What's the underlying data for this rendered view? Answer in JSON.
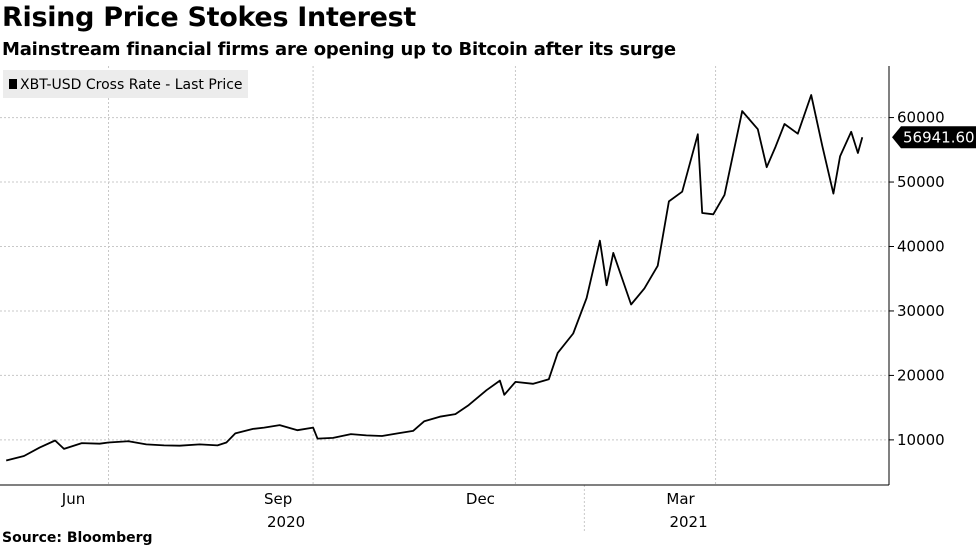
{
  "header": {
    "title": "Rising Price Stokes Interest",
    "subtitle": "Mainstream financial firms are opening up to Bitcoin after its surge"
  },
  "footer": {
    "source": "Source: Bloomberg"
  },
  "colors": {
    "line": "#000000",
    "grid": "#c8c8c8",
    "legend_bg": "#ececec",
    "last_label_bg": "#000000"
  },
  "chart_data": {
    "type": "line",
    "title": "Rising Price Stokes Interest",
    "subtitle": "Mainstream financial firms are opening up to Bitcoin after its surge",
    "legend": {
      "position": "top-left",
      "entries": [
        "XBT-USD Cross Rate - Last Price"
      ]
    },
    "series": [
      {
        "name": "XBT-USD Cross Rate - Last Price",
        "x": [
          "2020-04-16",
          "2020-04-24",
          "2020-05-01",
          "2020-05-08",
          "2020-05-12",
          "2020-05-20",
          "2020-05-28",
          "2020-06-01",
          "2020-06-10",
          "2020-06-18",
          "2020-06-26",
          "2020-07-03",
          "2020-07-12",
          "2020-07-20",
          "2020-07-24",
          "2020-07-28",
          "2020-08-05",
          "2020-08-10",
          "2020-08-17",
          "2020-08-25",
          "2020-09-01",
          "2020-09-03",
          "2020-09-10",
          "2020-09-18",
          "2020-09-25",
          "2020-10-02",
          "2020-10-09",
          "2020-10-16",
          "2020-10-21",
          "2020-10-28",
          "2020-11-04",
          "2020-11-10",
          "2020-11-18",
          "2020-11-24",
          "2020-11-26",
          "2020-12-01",
          "2020-12-09",
          "2020-12-16",
          "2020-12-20",
          "2020-12-27",
          "2021-01-02",
          "2021-01-08",
          "2021-01-11",
          "2021-01-14",
          "2021-01-22",
          "2021-01-28",
          "2021-02-03",
          "2021-02-08",
          "2021-02-14",
          "2021-02-21",
          "2021-02-23",
          "2021-02-28",
          "2021-03-05",
          "2021-03-13",
          "2021-03-20",
          "2021-03-24",
          "2021-03-28",
          "2021-04-01",
          "2021-04-07",
          "2021-04-13",
          "2021-04-18",
          "2021-04-23",
          "2021-04-26",
          "2021-05-01",
          "2021-05-04",
          "2021-05-06"
        ],
        "y": [
          6800,
          7500,
          8800,
          9900,
          8600,
          9500,
          9400,
          9600,
          9800,
          9300,
          9150,
          9100,
          9300,
          9150,
          9600,
          11000,
          11700,
          11900,
          12300,
          11500,
          11900,
          10200,
          10300,
          10900,
          10700,
          10600,
          11000,
          11400,
          12900,
          13600,
          14000,
          15400,
          17700,
          19200,
          17000,
          19000,
          18700,
          19400,
          23500,
          26500,
          32000,
          40900,
          34000,
          39000,
          31000,
          33500,
          37000,
          47000,
          48500,
          57400,
          45200,
          45000,
          48000,
          61000,
          58200,
          52300,
          55500,
          59000,
          57500,
          63500,
          55600,
          48200,
          54000,
          57800,
          54500,
          56941.6
        ]
      }
    ],
    "last_value_label": "56941.60",
    "x_ticks": [
      {
        "date": "2020-06-01",
        "label": "Jun"
      },
      {
        "date": "2020-09-01",
        "label": "Sep"
      },
      {
        "date": "2020-12-01",
        "label": "Dec"
      },
      {
        "date": "2021-03-01",
        "label": "Mar"
      }
    ],
    "year_labels": [
      {
        "date": "2020-09-01",
        "label": "2020"
      },
      {
        "date": "2021-03-01",
        "label": "2021"
      }
    ],
    "x_range": [
      "2020-04-15",
      "2021-05-18"
    ],
    "y_ticks": [
      10000,
      20000,
      30000,
      40000,
      50000,
      60000
    ],
    "ylim": [
      3000,
      68000
    ],
    "y_axis_side": "right",
    "grid": true
  }
}
